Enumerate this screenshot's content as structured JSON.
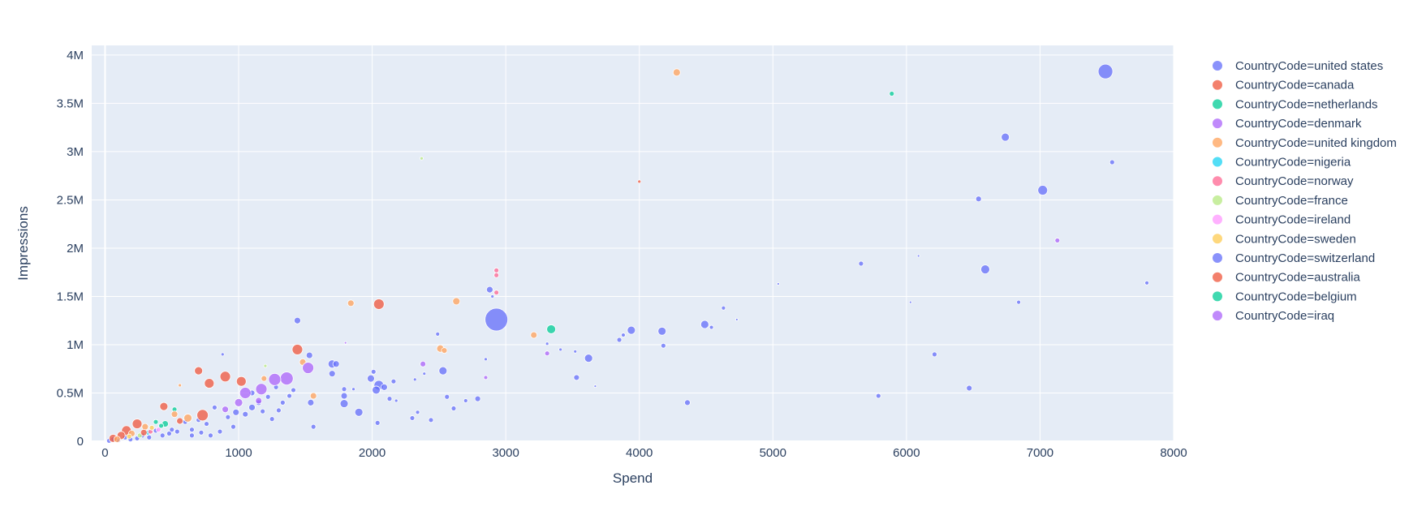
{
  "chart_data": {
    "type": "scatter",
    "title": "",
    "xlabel": "Spend",
    "ylabel": "Impressions",
    "xlim": [
      -100,
      8000
    ],
    "ylim": [
      0,
      4100000
    ],
    "x_ticks": [
      0,
      1000,
      2000,
      3000,
      4000,
      5000,
      6000,
      7000,
      8000
    ],
    "x_tick_labels": [
      "0",
      "1000",
      "2000",
      "3000",
      "4000",
      "5000",
      "6000",
      "7000",
      "8000"
    ],
    "y_ticks": [
      0,
      500000,
      1000000,
      1500000,
      2000000,
      2500000,
      3000000,
      3500000,
      4000000
    ],
    "y_tick_labels": [
      "0",
      "0.5M",
      "1M",
      "1.5M",
      "2M",
      "2.5M",
      "3M",
      "3.5M",
      "4M"
    ],
    "grid": true,
    "background": "#e5ecf6",
    "legend_position": "right",
    "series": [
      {
        "name": "CountryCode=united states",
        "color": "#636efa",
        "points": [
          [
            7490,
            3830000,
            9
          ],
          [
            6740,
            3150000,
            5
          ],
          [
            7540,
            2890000,
            3
          ],
          [
            6540,
            2510000,
            3.5
          ],
          [
            7020,
            2600000,
            6
          ],
          [
            5660,
            1840000,
            3
          ],
          [
            6590,
            1780000,
            5.5
          ],
          [
            6090,
            1920000,
            1.5
          ],
          [
            7800,
            1640000,
            2.5
          ],
          [
            5040,
            1630000,
            1.5
          ],
          [
            6840,
            1440000,
            2.5
          ],
          [
            6030,
            1440000,
            1.5
          ],
          [
            4630,
            1380000,
            2.5
          ],
          [
            4730,
            1260000,
            1.5
          ],
          [
            4490,
            1210000,
            5
          ],
          [
            4540,
            1180000,
            2.5
          ],
          [
            3940,
            1150000,
            5
          ],
          [
            4170,
            1140000,
            5
          ],
          [
            3880,
            1100000,
            2.5
          ],
          [
            3850,
            1050000,
            3
          ],
          [
            4180,
            990000,
            3
          ],
          [
            3620,
            860000,
            5
          ],
          [
            3530,
            660000,
            3.5
          ],
          [
            3670,
            570000,
            1.5
          ],
          [
            4360,
            400000,
            3.5
          ],
          [
            5790,
            470000,
            3
          ],
          [
            6210,
            900000,
            3
          ],
          [
            6470,
            550000,
            3.5
          ],
          [
            2930,
            1260000,
            14
          ],
          [
            2880,
            1570000,
            4
          ],
          [
            2900,
            1500000,
            2
          ],
          [
            2850,
            850000,
            2
          ],
          [
            2530,
            730000,
            5
          ],
          [
            2490,
            1110000,
            2.5
          ],
          [
            2390,
            700000,
            2
          ],
          [
            2320,
            640000,
            2
          ],
          [
            2160,
            620000,
            3
          ],
          [
            2050,
            580000,
            6
          ],
          [
            2030,
            530000,
            5
          ],
          [
            1990,
            650000,
            4.5
          ],
          [
            2010,
            720000,
            3
          ],
          [
            2090,
            560000,
            4
          ],
          [
            2130,
            440000,
            3
          ],
          [
            2040,
            190000,
            3
          ],
          [
            1900,
            300000,
            5
          ],
          [
            1860,
            540000,
            2
          ],
          [
            1790,
            470000,
            4
          ],
          [
            1790,
            390000,
            5
          ],
          [
            1790,
            540000,
            3
          ],
          [
            1700,
            800000,
            5
          ],
          [
            1730,
            800000,
            4
          ],
          [
            1700,
            700000,
            4
          ],
          [
            1530,
            890000,
            4
          ],
          [
            1440,
            1250000,
            4
          ],
          [
            1560,
            150000,
            3
          ],
          [
            1540,
            400000,
            4
          ],
          [
            1410,
            530000,
            3
          ],
          [
            1380,
            470000,
            3
          ],
          [
            1330,
            400000,
            3
          ],
          [
            1280,
            560000,
            3
          ],
          [
            1220,
            460000,
            3
          ],
          [
            1150,
            400000,
            3.5
          ],
          [
            1100,
            350000,
            4
          ],
          [
            1050,
            280000,
            3.5
          ],
          [
            980,
            300000,
            4
          ],
          [
            920,
            250000,
            3
          ],
          [
            880,
            900000,
            2
          ],
          [
            820,
            350000,
            3
          ],
          [
            760,
            180000,
            3
          ],
          [
            700,
            220000,
            3
          ],
          [
            650,
            120000,
            3
          ],
          [
            600,
            200000,
            3
          ],
          [
            540,
            100000,
            3
          ],
          [
            480,
            80000,
            3
          ],
          [
            430,
            60000,
            3
          ],
          [
            380,
            110000,
            3
          ],
          [
            330,
            40000,
            3
          ],
          [
            280,
            60000,
            3
          ],
          [
            240,
            30000,
            3
          ],
          [
            190,
            20000,
            3
          ],
          [
            150,
            40000,
            3
          ],
          [
            100,
            10000,
            3
          ],
          [
            60,
            20000,
            3
          ],
          [
            30,
            5000,
            3
          ],
          [
            2440,
            220000,
            3
          ],
          [
            2560,
            460000,
            3
          ],
          [
            2610,
            340000,
            3
          ],
          [
            2700,
            420000,
            2.5
          ],
          [
            2790,
            440000,
            3.5
          ],
          [
            2300,
            240000,
            3
          ],
          [
            2340,
            300000,
            2.5
          ],
          [
            2180,
            420000,
            2
          ],
          [
            3410,
            950000,
            2
          ],
          [
            3520,
            930000,
            2
          ],
          [
            3310,
            1010000,
            2
          ],
          [
            1100,
            500000,
            3.5
          ],
          [
            1180,
            310000,
            3
          ],
          [
            1250,
            230000,
            3
          ],
          [
            1300,
            320000,
            3
          ],
          [
            960,
            150000,
            3
          ],
          [
            860,
            100000,
            3
          ],
          [
            790,
            60000,
            3
          ],
          [
            720,
            90000,
            3
          ],
          [
            650,
            60000,
            3
          ]
        ]
      },
      {
        "name": "CountryCode=canada",
        "color": "#ef553b",
        "points": [
          [
            4000,
            2690000,
            2
          ],
          [
            2050,
            1420000,
            6.5
          ],
          [
            1440,
            950000,
            6.5
          ],
          [
            900,
            670000,
            6.5
          ],
          [
            1020,
            620000,
            6
          ],
          [
            780,
            600000,
            6
          ],
          [
            700,
            730000,
            5
          ],
          [
            730,
            270000,
            7
          ],
          [
            440,
            360000,
            5
          ],
          [
            240,
            180000,
            6
          ],
          [
            160,
            110000,
            6
          ],
          [
            120,
            60000,
            5
          ],
          [
            60,
            30000,
            5
          ]
        ]
      },
      {
        "name": "CountryCode=netherlands",
        "color": "#00cc96",
        "points": [
          [
            5890,
            3600000,
            3
          ],
          [
            3340,
            1160000,
            5.5
          ],
          [
            450,
            180000,
            4
          ],
          [
            520,
            330000,
            3
          ],
          [
            380,
            200000,
            3
          ]
        ]
      },
      {
        "name": "CountryCode=denmark",
        "color": "#ab63fa",
        "points": [
          [
            7130,
            2080000,
            3
          ],
          [
            2380,
            800000,
            3.5
          ],
          [
            3310,
            910000,
            3
          ],
          [
            2850,
            660000,
            2.5
          ],
          [
            1800,
            1020000,
            1.5
          ]
        ]
      },
      {
        "name": "CountryCode=united kingdom",
        "color": "#ffa15a",
        "points": [
          [
            4280,
            3820000,
            4.5
          ],
          [
            2630,
            1450000,
            4.5
          ],
          [
            1840,
            1430000,
            4
          ],
          [
            2510,
            960000,
            4.5
          ],
          [
            2540,
            940000,
            3.5
          ],
          [
            3210,
            1100000,
            4
          ],
          [
            1480,
            820000,
            4
          ],
          [
            1560,
            470000,
            4
          ],
          [
            1190,
            650000,
            3.5
          ],
          [
            620,
            240000,
            5
          ],
          [
            520,
            280000,
            4
          ],
          [
            300,
            150000,
            4
          ],
          [
            200,
            80000,
            4
          ],
          [
            90,
            20000,
            4
          ],
          [
            560,
            580000,
            2
          ]
        ]
      },
      {
        "name": "CountryCode=nigeria",
        "color": "#19d3f3",
        "points": [
          [
            320,
            90000,
            3
          ]
        ]
      },
      {
        "name": "CountryCode=norway",
        "color": "#ff6692",
        "points": [
          [
            2930,
            1770000,
            3
          ],
          [
            2930,
            1720000,
            3
          ],
          [
            2930,
            1540000,
            3
          ],
          [
            340,
            100000,
            3
          ]
        ]
      },
      {
        "name": "CountryCode=france",
        "color": "#b6e880",
        "points": [
          [
            2370,
            2930000,
            2
          ],
          [
            1200,
            780000,
            2
          ],
          [
            260,
            60000,
            3
          ]
        ]
      },
      {
        "name": "CountryCode=ireland",
        "color": "#ff97ff",
        "points": [
          [
            400,
            120000,
            3
          ]
        ]
      },
      {
        "name": "CountryCode=sweden",
        "color": "#fecb52",
        "points": [
          [
            350,
            140000,
            3
          ],
          [
            180,
            50000,
            3
          ]
        ]
      },
      {
        "name": "CountryCode=switzerland",
        "color": "#636efa",
        "points": [
          [
            500,
            120000,
            3
          ]
        ]
      },
      {
        "name": "CountryCode=australia",
        "color": "#ef553b",
        "points": [
          [
            560,
            210000,
            4
          ],
          [
            290,
            90000,
            4
          ]
        ]
      },
      {
        "name": "CountryCode=belgium",
        "color": "#00cc96",
        "points": [
          [
            420,
            160000,
            3
          ]
        ]
      },
      {
        "name": "CountryCode=iraq",
        "color": "#ab63fa",
        "points": [
          [
            1360,
            650000,
            8
          ],
          [
            1270,
            640000,
            7.5
          ],
          [
            1170,
            540000,
            7
          ],
          [
            1050,
            500000,
            7
          ],
          [
            1520,
            760000,
            7
          ],
          [
            1000,
            400000,
            5
          ],
          [
            900,
            330000,
            4
          ],
          [
            1150,
            420000,
            4
          ]
        ]
      }
    ]
  }
}
